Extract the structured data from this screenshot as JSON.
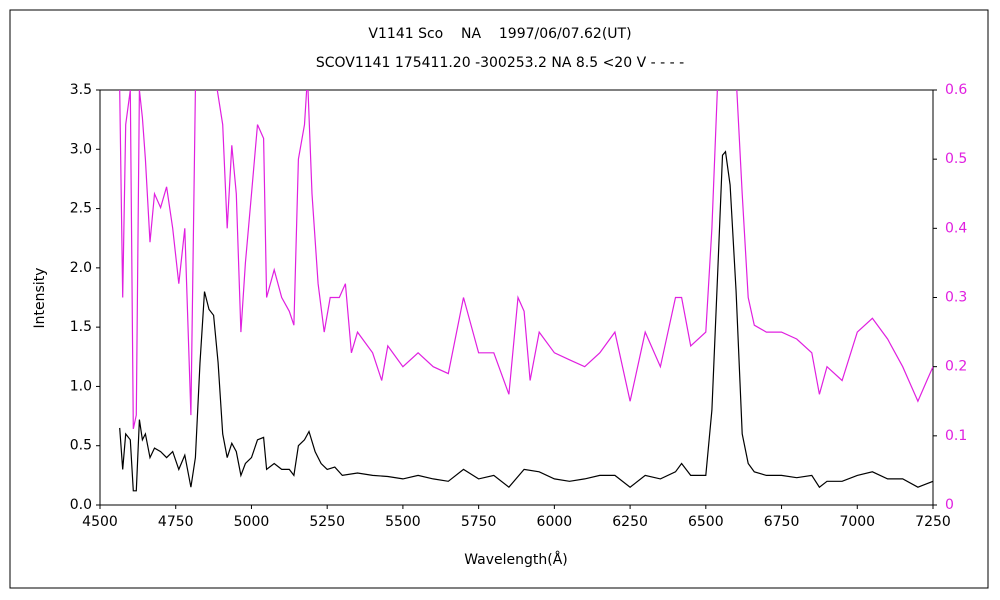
{
  "chart_data": {
    "type": "line",
    "title": "V1141 Sco    NA    1997/06/07.62(UT)",
    "subtitle": "SCOV1141 175411.20 -300253.2 NA 8.5 <20 V - - - -",
    "xlabel": "Wavelength(Å)",
    "ylabel": "Intensity",
    "xlim": [
      4500,
      7250
    ],
    "xticks": [
      4500,
      4750,
      5000,
      5250,
      5500,
      5750,
      6000,
      6250,
      6500,
      6750,
      7000,
      7250
    ],
    "ylim": [
      0,
      3.5
    ],
    "yticks": [
      {
        "value": 0,
        "label": "0.0"
      },
      0.5,
      {
        "value": 1,
        "label": "1.0"
      },
      1.5,
      {
        "value": 2,
        "label": "2.0"
      },
      2.5,
      {
        "value": 3,
        "label": "3.0"
      },
      3.5
    ],
    "y2lim": [
      0,
      0.6
    ],
    "y2ticks": [
      0,
      0.1,
      0.2,
      0.3,
      0.4,
      0.5,
      0.6
    ],
    "grid": false,
    "series": [
      {
        "color": "#000000",
        "x": [
          4565,
          4575,
          4585,
          4600,
          4610,
          4620,
          4630,
          4640,
          4650,
          4665,
          4680,
          4700,
          4720,
          4740,
          4760,
          4780,
          4800,
          4815,
          4830,
          4845,
          4860,
          4875,
          4890,
          4905,
          4920,
          4935,
          4950,
          4965,
          4980,
          5000,
          5020,
          5040,
          5050,
          5075,
          5100,
          5125,
          5140,
          5155,
          5175,
          5190,
          5210,
          5230,
          5250,
          5275,
          5300,
          5350,
          5400,
          5450,
          5500,
          5550,
          5600,
          5650,
          5700,
          5750,
          5800,
          5850,
          5900,
          5950,
          6000,
          6050,
          6100,
          6150,
          6200,
          6250,
          6300,
          6350,
          6400,
          6420,
          6450,
          6500,
          6520,
          6540,
          6555,
          6565,
          6580,
          6600,
          6620,
          6640,
          6660,
          6700,
          6750,
          6800,
          6850,
          6875,
          6900,
          6950,
          7000,
          7050,
          7100,
          7150,
          7200,
          7230,
          7250
        ],
        "values": [
          0.65,
          0.3,
          0.6,
          0.55,
          0.12,
          0.12,
          0.72,
          0.55,
          0.6,
          0.4,
          0.48,
          0.45,
          0.4,
          0.45,
          0.3,
          0.42,
          0.15,
          0.4,
          1.2,
          1.8,
          1.65,
          1.6,
          1.2,
          0.6,
          0.4,
          0.52,
          0.45,
          0.25,
          0.35,
          0.4,
          0.55,
          0.57,
          0.3,
          0.35,
          0.3,
          0.3,
          0.25,
          0.5,
          0.55,
          0.62,
          0.45,
          0.35,
          0.3,
          0.32,
          0.25,
          0.27,
          0.25,
          0.24,
          0.22,
          0.25,
          0.22,
          0.2,
          0.3,
          0.22,
          0.25,
          0.15,
          0.3,
          0.28,
          0.22,
          0.2,
          0.22,
          0.25,
          0.25,
          0.15,
          0.25,
          0.22,
          0.28,
          0.35,
          0.25,
          0.25,
          0.8,
          2.0,
          2.95,
          2.98,
          2.7,
          1.8,
          0.6,
          0.35,
          0.28,
          0.25,
          0.25,
          0.23,
          0.25,
          0.15,
          0.2,
          0.2,
          0.25,
          0.28,
          0.22,
          0.22,
          0.15,
          0.18,
          0.2
        ]
      },
      {
        "color": "#e020e0",
        "axis": "y2",
        "x": [
          4565,
          4575,
          4585,
          4600,
          4610,
          4620,
          4630,
          4640,
          4650,
          4665,
          4680,
          4700,
          4720,
          4740,
          4760,
          4780,
          4800,
          4815,
          4830,
          4850,
          4880,
          4905,
          4920,
          4935,
          4950,
          4965,
          4980,
          5000,
          5020,
          5040,
          5050,
          5075,
          5100,
          5125,
          5140,
          5155,
          5175,
          5185,
          5200,
          5220,
          5240,
          5260,
          5290,
          5310,
          5330,
          5350,
          5400,
          5430,
          5450,
          5500,
          5550,
          5600,
          5650,
          5700,
          5750,
          5800,
          5850,
          5880,
          5900,
          5920,
          5950,
          6000,
          6050,
          6100,
          6150,
          6200,
          6250,
          6300,
          6350,
          6400,
          6420,
          6450,
          6500,
          6520,
          6540,
          6600,
          6620,
          6640,
          6660,
          6700,
          6750,
          6800,
          6850,
          6875,
          6900,
          6950,
          7000,
          7050,
          7100,
          7150,
          7200,
          7230,
          7250
        ],
        "values": [
          0.6,
          0.3,
          0.55,
          0.6,
          0.11,
          0.13,
          0.6,
          0.56,
          0.5,
          0.38,
          0.45,
          0.43,
          0.46,
          0.4,
          0.32,
          0.4,
          0.13,
          0.6,
          0.62,
          0.62,
          0.62,
          0.55,
          0.4,
          0.52,
          0.45,
          0.25,
          0.35,
          0.45,
          0.55,
          0.53,
          0.3,
          0.34,
          0.3,
          0.28,
          0.26,
          0.5,
          0.55,
          0.62,
          0.45,
          0.32,
          0.25,
          0.3,
          0.3,
          0.32,
          0.22,
          0.25,
          0.22,
          0.18,
          0.23,
          0.2,
          0.22,
          0.2,
          0.19,
          0.3,
          0.22,
          0.22,
          0.16,
          0.3,
          0.28,
          0.18,
          0.25,
          0.22,
          0.21,
          0.2,
          0.22,
          0.25,
          0.15,
          0.25,
          0.2,
          0.3,
          0.3,
          0.23,
          0.25,
          0.4,
          0.62,
          0.62,
          0.45,
          0.3,
          0.26,
          0.25,
          0.25,
          0.24,
          0.22,
          0.16,
          0.2,
          0.18,
          0.25,
          0.27,
          0.24,
          0.2,
          0.15,
          0.18,
          0.2
        ]
      }
    ]
  }
}
